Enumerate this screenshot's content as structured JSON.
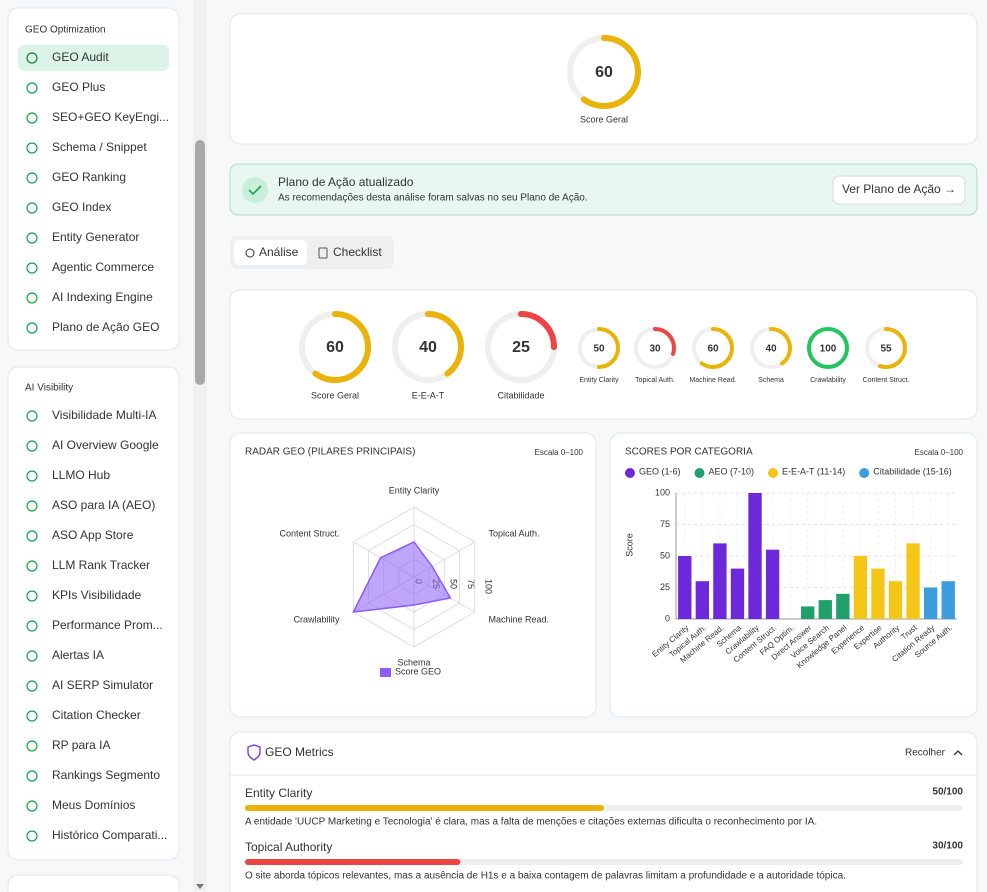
{
  "sidebar": {
    "sections": [
      {
        "title": "GEO Optimization",
        "items": [
          "GEO Audit",
          "GEO Plus",
          "SEO+GEO KeyEngi...",
          "Schema / Snippet",
          "GEO Ranking",
          "GEO Index",
          "Entity Generator",
          "Agentic Commerce",
          "AI Indexing Engine",
          "Plano de Ação GEO"
        ]
      },
      {
        "title": "AI Visibility",
        "items": [
          "Visibilidade Multi-IA",
          "AI Overview Google",
          "LLMO Hub",
          "ASO para IA (AEO)",
          "ASO App Store",
          "LLM Rank Tracker",
          "KPIs Visibilidade",
          "Performance Prom...",
          "Alertas IA",
          "AI SERP Simulator",
          "Citation Checker",
          "RP para IA",
          "Rankings Segmento",
          "Meus Domínios",
          "Histórico Comparati..."
        ]
      }
    ]
  },
  "score_card": {
    "value": 60,
    "label": "Score Geral",
    "color": "#eab308",
    "lim": [
      0,
      100
    ]
  },
  "banner": {
    "title": "Plano de Ação atualizado",
    "text": "As recomendações desta análise foram salvas no seu Plano de Ação.",
    "button": "Ver Plano de Ação →"
  },
  "tabs": [
    "Análise",
    "Checklist"
  ],
  "gauges": {
    "lim": [
      0,
      100
    ],
    "items": [
      {
        "value": 60,
        "label": "Score Geral",
        "color": "#eab308"
      },
      {
        "value": 40,
        "label": "E-E-A-T",
        "color": "#eab308"
      },
      {
        "value": 25,
        "label": "Citabilidade",
        "color": "#ef4444"
      },
      {
        "value": 50,
        "label": "Entity Clarity",
        "color": "#eab308"
      },
      {
        "value": 30,
        "label": "Topical Auth.",
        "color": "#ef4444"
      },
      {
        "value": 60,
        "label": "Machine Read.",
        "color": "#eab308"
      },
      {
        "value": 40,
        "label": "Schema",
        "color": "#eab308"
      },
      {
        "value": 100,
        "label": "Crawlability",
        "color": "#22c55e"
      },
      {
        "value": 55,
        "label": "Content Struct.",
        "color": "#eab308"
      }
    ]
  },
  "chart_data": [
    {
      "type": "radar",
      "title": "RADAR GEO (PILARES PRINCIPAIS)",
      "subtitle": "Escala 0–100",
      "categories": [
        "Entity Clarity",
        "Topical Auth.",
        "Machine Read.",
        "Schema",
        "Crawlability",
        "Content Struct."
      ],
      "series": [
        {
          "name": "Score GEO",
          "color": "#8b5cf6",
          "values": [
            50,
            30,
            60,
            40,
            100,
            55
          ]
        }
      ],
      "rlim": [
        0,
        100
      ],
      "rticks": [
        0,
        25,
        50,
        75,
        100
      ]
    },
    {
      "type": "bar",
      "title": "SCORES POR CATEGORIA",
      "subtitle": "Escala 0–100",
      "y_label": "Score",
      "categories": [
        "Entity Clarity",
        "Topical Auth.",
        "Machine Read.",
        "Schema",
        "Crawlability",
        "Content Struct.",
        "FAQ Optim.",
        "Direct Answer",
        "Voice Search",
        "Knowledge Panel",
        "Experience",
        "Expertise",
        "Authority",
        "Trust",
        "Citation Ready",
        "Source Auth."
      ],
      "series": [
        {
          "name": "GEO (1-6)",
          "color": "#6d28d9",
          "values": [
            50,
            30,
            60,
            40,
            100,
            55,
            null,
            null,
            null,
            null,
            null,
            null,
            null,
            null,
            null,
            null
          ]
        },
        {
          "name": "AEO (7-10)",
          "color": "#22a06b",
          "values": [
            null,
            null,
            null,
            null,
            null,
            null,
            0,
            10,
            15,
            20,
            null,
            null,
            null,
            null,
            null,
            null
          ]
        },
        {
          "name": "E-E-A-T (11-14)",
          "color": "#f5c518",
          "values": [
            null,
            null,
            null,
            null,
            null,
            null,
            null,
            null,
            null,
            null,
            50,
            40,
            30,
            60,
            null,
            null
          ]
        },
        {
          "name": "Citabilidade (15-16)",
          "color": "#3b9ddd",
          "values": [
            null,
            null,
            null,
            null,
            null,
            null,
            null,
            null,
            null,
            null,
            null,
            null,
            null,
            null,
            25,
            30
          ]
        }
      ],
      "ylim": [
        0,
        100
      ],
      "yticks": [
        0,
        25,
        50,
        75,
        100
      ],
      "grid": true
    }
  ],
  "metrics": {
    "title": "GEO Metrics",
    "toggle": "Recolher",
    "lim": [
      0,
      100
    ],
    "items": [
      {
        "name": "Entity Clarity",
        "value": 50,
        "value_label": "50/100",
        "color": "#eab308",
        "text": "A entidade 'UUCP Marketing e Tecnologia' é clara, mas a falta de menções e citações externas dificulta o reconhecimento por IA."
      },
      {
        "name": "Topical Authority",
        "value": 30,
        "value_label": "30/100",
        "color": "#ef4444",
        "text": "O site aborda tópicos relevantes, mas a ausência de H1s e a baixa contagem de palavras limitam a profundidade e a autoridade tópica."
      }
    ]
  }
}
